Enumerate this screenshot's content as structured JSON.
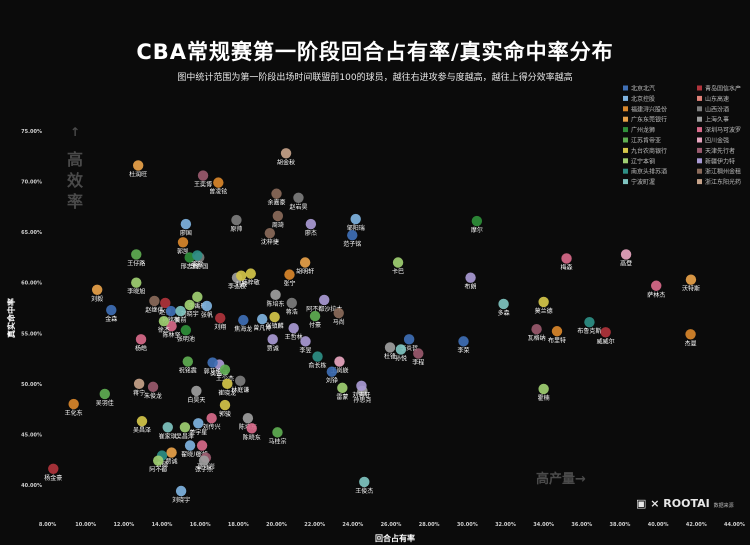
{
  "header": {
    "title": "CBA常规赛第一阶段回合占有率/真实命中率分布",
    "subtitle": "图中统计范围为第一阶段出场时间联盟前100的球员，越往右进攻参与度越高，越往上得分效率越高"
  },
  "hints": {
    "up": "↑",
    "up_text": [
      "高",
      "效",
      "率"
    ],
    "right_text": "高产量→"
  },
  "logo": {
    "text_a": "▣ ×",
    "text_b": "ROOTAI",
    "sub": "数据来源"
  },
  "chart_data": {
    "type": "scatter",
    "title": "CBA常规赛第一阶段回合占有率/真实命中率分布",
    "xlabel": "回合占有率",
    "ylabel": "真实命中率",
    "xlim": [
      0.075,
      0.445
    ],
    "ylim": [
      0.395,
      0.755
    ],
    "x_ticks": [
      "8.00%",
      "10.00%",
      "12.00%",
      "14.00%",
      "16.00%",
      "18.00%",
      "20.00%",
      "22.00%",
      "24.00%",
      "26.00%",
      "28.00%",
      "30.00%",
      "32.00%",
      "34.00%",
      "36.00%",
      "38.00%",
      "40.00%",
      "42.00%",
      "44.00%"
    ],
    "x_tick_values": [
      0.08,
      0.1,
      0.12,
      0.14,
      0.16,
      0.18,
      0.2,
      0.22,
      0.24,
      0.26,
      0.28,
      0.3,
      0.32,
      0.34,
      0.36,
      0.38,
      0.4,
      0.42,
      0.44
    ],
    "y_ticks": [
      "40.00%",
      "45.00%",
      "50.00%",
      "55.00%",
      "60.00%",
      "65.00%",
      "70.00%",
      "75.00%"
    ],
    "y_tick_values": [
      0.4,
      0.45,
      0.5,
      0.55,
      0.6,
      0.65,
      0.7,
      0.75
    ],
    "grid": false,
    "legend_position": "top-right",
    "teams": [
      {
        "name": "北京北汽",
        "color": "#3f6fb5"
      },
      {
        "name": "青岛国信水产",
        "color": "#b0343c"
      },
      {
        "name": "北京控股",
        "color": "#7fb3e0"
      },
      {
        "name": "山东高速",
        "color": "#e0837a"
      },
      {
        "name": "福建浔兴股份",
        "color": "#d9872b"
      },
      {
        "name": "山西汾酒",
        "color": "#7d7d7d"
      },
      {
        "name": "广东东莞银行",
        "color": "#e8a24a"
      },
      {
        "name": "上海久事",
        "color": "#9e9e9e"
      },
      {
        "name": "广州龙狮",
        "color": "#2f8f3a"
      },
      {
        "name": "深圳马可波罗",
        "color": "#d86a8a"
      },
      {
        "name": "江苏肯帝亚",
        "color": "#5fae52"
      },
      {
        "name": "四川金强",
        "color": "#e8a6c0"
      },
      {
        "name": "九台农商银行",
        "color": "#d4c64a"
      },
      {
        "name": "天津先行者",
        "color": "#9a5a6e"
      },
      {
        "name": "辽宁本钢",
        "color": "#9fcf72"
      },
      {
        "name": "新疆伊力特",
        "color": "#a99ad4"
      },
      {
        "name": "南京头排苏酒",
        "color": "#2e8f85"
      },
      {
        "name": "浙江稠州金租",
        "color": "#8a6a5a"
      },
      {
        "name": "宁波町渥",
        "color": "#7fc4c0"
      },
      {
        "name": "浙江东阳光药",
        "color": "#c7a38a"
      }
    ],
    "points": [
      {
        "label": "杜润旺",
        "x": 0.1275,
        "y": 0.716,
        "team": "广东东莞银行"
      },
      {
        "label": "王奕博",
        "x": 0.1615,
        "y": 0.706,
        "team": "天津先行者"
      },
      {
        "label": "曾凌铉",
        "x": 0.1695,
        "y": 0.699,
        "team": "福建浔兴股份"
      },
      {
        "label": "胡金秋",
        "x": 0.205,
        "y": 0.728,
        "team": "浙江东阳光药"
      },
      {
        "label": "余嘉豪",
        "x": 0.2,
        "y": 0.688,
        "team": "浙江稠州金租"
      },
      {
        "label": "赵岩昊",
        "x": 0.2115,
        "y": 0.684,
        "team": "山西汾酒"
      },
      {
        "label": "周琦",
        "x": 0.2007,
        "y": 0.666,
        "team": "浙江稠州金租"
      },
      {
        "label": "邹阳瑞",
        "x": 0.2415,
        "y": 0.663,
        "team": "北京控股"
      },
      {
        "label": "原帅",
        "x": 0.179,
        "y": 0.662,
        "team": "山西汾酒"
      },
      {
        "label": "廖杰",
        "x": 0.218,
        "y": 0.658,
        "team": "新疆伊力特"
      },
      {
        "label": "廖国",
        "x": 0.1525,
        "y": 0.658,
        "team": "北京控股"
      },
      {
        "label": "范子铭",
        "x": 0.2397,
        "y": 0.647,
        "team": "北京北汽"
      },
      {
        "label": "摩尔",
        "x": 0.305,
        "y": 0.661,
        "team": "广州龙狮"
      },
      {
        "label": "沈梓捷",
        "x": 0.1965,
        "y": 0.649,
        "team": "浙江稠州金租"
      },
      {
        "label": "郭凯",
        "x": 0.151,
        "y": 0.64,
        "team": "福建浔兴股份"
      },
      {
        "label": "王仔路",
        "x": 0.1265,
        "y": 0.628,
        "team": "江苏肯帝亚"
      },
      {
        "label": "邢志强",
        "x": 0.1545,
        "y": 0.625,
        "team": "广州龙狮"
      },
      {
        "label": "李亦国",
        "x": 0.1595,
        "y": 0.625,
        "team": "山西汾酒"
      },
      {
        "label": "李欣",
        "x": 0.1585,
        "y": 0.627,
        "team": "南京头排苏酒"
      },
      {
        "label": "胡明轩",
        "x": 0.215,
        "y": 0.62,
        "team": "广东东莞银行"
      },
      {
        "label": "卡巴",
        "x": 0.2637,
        "y": 0.62,
        "team": "辽宁本钢"
      },
      {
        "label": "梅森",
        "x": 0.352,
        "y": 0.624,
        "team": "深圳马可波罗"
      },
      {
        "label": "高登",
        "x": 0.3832,
        "y": 0.628,
        "team": "四川金强"
      },
      {
        "label": "韩梓敬",
        "x": 0.1865,
        "y": 0.609,
        "team": "九台农商银行"
      },
      {
        "label": "张宁",
        "x": 0.2068,
        "y": 0.608,
        "team": "福建浔兴股份"
      },
      {
        "label": "李弘权",
        "x": 0.1793,
        "y": 0.605,
        "team": "上海久事"
      },
      {
        "label": "刘毅",
        "x": 0.1815,
        "y": 0.607,
        "team": "九台农商银行"
      },
      {
        "label": "李晓旭",
        "x": 0.1265,
        "y": 0.6,
        "team": "辽宁本钢"
      },
      {
        "label": "刘毅",
        "x": 0.106,
        "y": 0.593,
        "team": "广东东莞银行"
      },
      {
        "label": "赵继伟",
        "x": 0.136,
        "y": 0.582,
        "team": "浙江稠州金租"
      },
      {
        "label": "李禹彤",
        "x": 0.1585,
        "y": 0.586,
        "team": "辽宁本钢"
      },
      {
        "label": "布朗",
        "x": 0.3017,
        "y": 0.605,
        "team": "新疆伊力特"
      },
      {
        "label": "沃特斯",
        "x": 0.4172,
        "y": 0.603,
        "team": "广东东莞银行"
      },
      {
        "label": "萨林杰",
        "x": 0.399,
        "y": 0.597,
        "team": "深圳马可波罗"
      },
      {
        "label": "多森",
        "x": 0.319,
        "y": 0.579,
        "team": "宁波町渥"
      },
      {
        "label": "莫兰德",
        "x": 0.34,
        "y": 0.581,
        "team": "九台农商银行"
      },
      {
        "label": "陈培东",
        "x": 0.1995,
        "y": 0.588,
        "team": "上海久事"
      },
      {
        "label": "蒋浩",
        "x": 0.208,
        "y": 0.58,
        "team": "山西汾酒"
      },
      {
        "label": "阿不都沙拉木",
        "x": 0.225,
        "y": 0.583,
        "team": "新疆伊力特"
      },
      {
        "label": "赵睿",
        "x": 0.1417,
        "y": 0.58,
        "team": "青岛国信水产"
      },
      {
        "label": "刘晓宇",
        "x": 0.1545,
        "y": 0.578,
        "team": "辽宁本钢"
      },
      {
        "label": "张帆",
        "x": 0.1635,
        "y": 0.577,
        "team": "北京控股"
      },
      {
        "label": "金森",
        "x": 0.1134,
        "y": 0.573,
        "team": "北京北汽"
      },
      {
        "label": "孙铭徽",
        "x": 0.1447,
        "y": 0.572,
        "team": "北京北汽"
      },
      {
        "label": "吴前",
        "x": 0.1497,
        "y": 0.572,
        "team": "宁波町渥"
      },
      {
        "label": "刘翔",
        "x": 0.1705,
        "y": 0.565,
        "team": "青岛国信水产"
      },
      {
        "label": "张镇麟",
        "x": 0.199,
        "y": 0.566,
        "team": "九台农商银行"
      },
      {
        "label": "付豪",
        "x": 0.2202,
        "y": 0.567,
        "team": "江苏肯帝亚"
      },
      {
        "label": "马尚",
        "x": 0.2326,
        "y": 0.57,
        "team": "浙江稠州金租"
      },
      {
        "label": "布鲁克斯",
        "x": 0.364,
        "y": 0.561,
        "team": "南京头排苏酒"
      },
      {
        "label": "布里特",
        "x": 0.347,
        "y": 0.552,
        "team": "福建浔兴股份"
      },
      {
        "label": "瓦格纳",
        "x": 0.3363,
        "y": 0.554,
        "team": "天津先行者"
      },
      {
        "label": "威威尔",
        "x": 0.3725,
        "y": 0.551,
        "team": "青岛国信水产"
      },
      {
        "label": "杰曼",
        "x": 0.417,
        "y": 0.549,
        "team": "福建浔兴股份"
      },
      {
        "label": "李炎哲",
        "x": 0.2695,
        "y": 0.544,
        "team": "北京北汽"
      },
      {
        "label": "杜锋",
        "x": 0.2595,
        "y": 0.536,
        "team": "上海久事"
      },
      {
        "label": "孙悦",
        "x": 0.2652,
        "y": 0.534,
        "team": "宁波町渥"
      },
      {
        "label": "李程",
        "x": 0.2743,
        "y": 0.53,
        "team": "天津先行者"
      },
      {
        "label": "李荣",
        "x": 0.298,
        "y": 0.542,
        "team": "北京北汽"
      },
      {
        "label": "曾凡博",
        "x": 0.1925,
        "y": 0.564,
        "team": "北京控股"
      },
      {
        "label": "焦海龙",
        "x": 0.1826,
        "y": 0.563,
        "team": "北京北汽"
      },
      {
        "label": "王哲林",
        "x": 0.209,
        "y": 0.555,
        "team": "新疆伊力特"
      },
      {
        "label": "李昱",
        "x": 0.2152,
        "y": 0.542,
        "team": "新疆伊力特"
      },
      {
        "label": "贾诚",
        "x": 0.198,
        "y": 0.544,
        "team": "新疆伊力特"
      },
      {
        "label": "俞长栋",
        "x": 0.2215,
        "y": 0.527,
        "team": "南京头排苏酒"
      },
      {
        "label": "张明池",
        "x": 0.1525,
        "y": 0.553,
        "team": "广州龙狮"
      },
      {
        "label": "陈林坚",
        "x": 0.145,
        "y": 0.557,
        "team": "深圳马可波罗"
      },
      {
        "label": "徐杰",
        "x": 0.141,
        "y": 0.562,
        "team": "辽宁本钢"
      },
      {
        "label": "杨皓",
        "x": 0.129,
        "y": 0.544,
        "team": "深圳马可波罗"
      },
      {
        "label": "祝铭震",
        "x": 0.1535,
        "y": 0.522,
        "team": "江苏肯帝亚"
      },
      {
        "label": "王岚嵚",
        "x": 0.233,
        "y": 0.522,
        "team": "四川金强"
      },
      {
        "label": "刘铮",
        "x": 0.229,
        "y": 0.512,
        "team": "北京北汽"
      },
      {
        "label": "吴昌泽",
        "x": 0.17,
        "y": 0.519,
        "team": "新疆伊力特"
      },
      {
        "label": "郭艾伦",
        "x": 0.1665,
        "y": 0.521,
        "team": "北京北汽"
      },
      {
        "label": "王少杰",
        "x": 0.173,
        "y": 0.514,
        "team": "江苏肯帝亚"
      },
      {
        "label": "林庭谦",
        "x": 0.181,
        "y": 0.503,
        "team": "山西汾酒"
      },
      {
        "label": "崔晓龙",
        "x": 0.1742,
        "y": 0.5,
        "team": "九台农商银行"
      },
      {
        "label": "白昊天",
        "x": 0.158,
        "y": 0.493,
        "team": "上海久事"
      },
      {
        "label": "朱俊龙",
        "x": 0.1353,
        "y": 0.497,
        "team": "天津先行者"
      },
      {
        "label": "蒋宁",
        "x": 0.128,
        "y": 0.5,
        "team": "浙江东阳光药"
      },
      {
        "label": "雷蒙",
        "x": 0.2345,
        "y": 0.496,
        "team": "辽宁本钢"
      },
      {
        "label": "孙思尧",
        "x": 0.245,
        "y": 0.493,
        "team": "上海久事"
      },
      {
        "label": "刘志轩",
        "x": 0.2445,
        "y": 0.498,
        "team": "新疆伊力特"
      },
      {
        "label": "霍楠",
        "x": 0.34,
        "y": 0.495,
        "team": "辽宁本钢"
      },
      {
        "label": "吴羽佳",
        "x": 0.11,
        "y": 0.49,
        "team": "江苏肯帝亚"
      },
      {
        "label": "王化东",
        "x": 0.0937,
        "y": 0.48,
        "team": "福建浔兴股份"
      },
      {
        "label": "郭骏",
        "x": 0.173,
        "y": 0.479,
        "team": "九台农商银行"
      },
      {
        "label": "刘传兴",
        "x": 0.166,
        "y": 0.466,
        "team": "深圳马可波罗"
      },
      {
        "label": "陈培东",
        "x": 0.185,
        "y": 0.466,
        "team": "上海久事"
      },
      {
        "label": "姜宇星",
        "x": 0.159,
        "y": 0.461,
        "team": "北京控股"
      },
      {
        "label": "崔家琪",
        "x": 0.143,
        "y": 0.457,
        "team": "宁波町渥"
      },
      {
        "label": "吴昌泽",
        "x": 0.152,
        "y": 0.457,
        "team": "辽宁本钢"
      },
      {
        "label": "陈晓东",
        "x": 0.187,
        "y": 0.456,
        "team": "深圳马可波罗"
      },
      {
        "label": "马桂宗",
        "x": 0.2005,
        "y": 0.452,
        "team": "江苏肯帝亚"
      },
      {
        "label": "吴昌泽",
        "x": 0.1295,
        "y": 0.463,
        "team": "九台农商银行"
      },
      {
        "label": "翟晓川",
        "x": 0.1547,
        "y": 0.439,
        "team": "北京控股"
      },
      {
        "label": "张帆",
        "x": 0.161,
        "y": 0.439,
        "team": "深圳马可波罗"
      },
      {
        "label": "贾诚",
        "x": 0.145,
        "y": 0.432,
        "team": "广东东莞银行"
      },
      {
        "label": "方硕",
        "x": 0.14,
        "y": 0.429,
        "team": "南京头排苏酒"
      },
      {
        "label": "高诗岩",
        "x": 0.163,
        "y": 0.427,
        "team": "天津先行者"
      },
      {
        "label": "阿不都",
        "x": 0.138,
        "y": 0.424,
        "team": "辽宁本钢"
      },
      {
        "label": "张子熙",
        "x": 0.162,
        "y": 0.424,
        "team": "上海久事"
      },
      {
        "label": "杨金豪",
        "x": 0.083,
        "y": 0.416,
        "team": "青岛国信水产"
      },
      {
        "label": "王俊杰",
        "x": 0.246,
        "y": 0.403,
        "team": "宁波町渥"
      },
      {
        "label": "刘晓宇",
        "x": 0.15,
        "y": 0.394,
        "team": "北京控股"
      }
    ]
  }
}
